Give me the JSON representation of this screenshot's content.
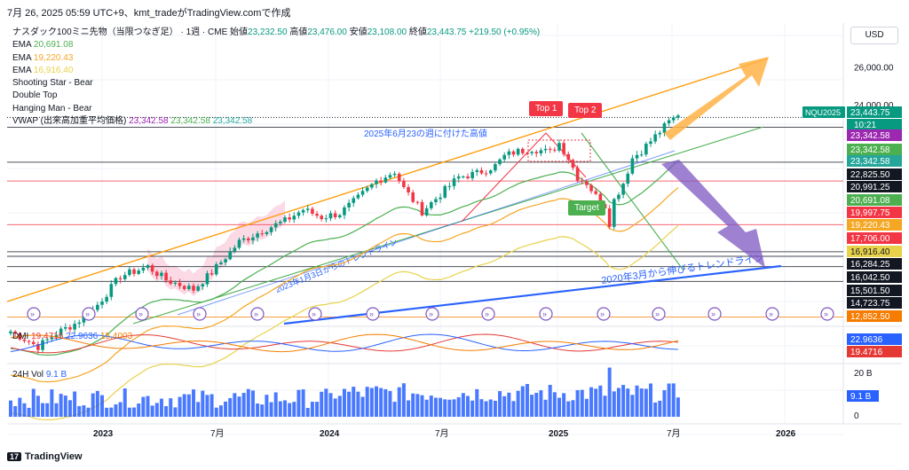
{
  "header": {
    "text": "7月 26, 2025 05:59 UTC+9、kmt_tradeがTradingView.comで作成"
  },
  "legend": {
    "symbol_line": "ナスダック100ミニ先物（当限つなぎ足） · 1週 · CME",
    "ohlc": [
      {
        "label": "始値",
        "value": "23,232.50"
      },
      {
        "label": "高値",
        "value": "23,476.00"
      },
      {
        "label": "安値",
        "value": "23,108.00"
      },
      {
        "label": "終値",
        "value": "23,443.75"
      }
    ],
    "change": "+219.50 (+0.95%)",
    "indicators": [
      {
        "name": "EMA",
        "value": "20,691.08",
        "color": "#4caf50"
      },
      {
        "name": "EMA",
        "value": "19,220.43",
        "color": "#f5a623"
      },
      {
        "name": "EMA",
        "value": "16,916.40",
        "color": "#e8d24a"
      },
      {
        "name": "Shooting Star - Bear",
        "value": "",
        "color": "#131722"
      },
      {
        "name": "Double Top",
        "value": "",
        "color": "#131722"
      },
      {
        "name": "Hanging Man - Bear",
        "value": "",
        "color": "#131722"
      }
    ],
    "vwap": {
      "name": "VWAP (出来高加重平均価格)",
      "values": [
        "23,342.58",
        "23,342.58",
        "23,342.58"
      ],
      "colors": [
        "#9c27b0",
        "#4caf50",
        "#26a69a"
      ]
    }
  },
  "currency_button": "USD",
  "symbol_tag": "NQU2025",
  "countdown": "10:21",
  "annotations": {
    "top1": "Top 1",
    "top2": "Top 2",
    "target": "Target",
    "high_note": "2025年6月23の週に付けた高値",
    "trend_2023": "2023年1月3日からのトレンドライン",
    "trend_2020": "2020年3月から伸びるトレンドライン"
  },
  "dmi": {
    "name": "DMI",
    "values": [
      "19.4716",
      "22.9636",
      "15.4003"
    ],
    "colors": [
      "#e53935",
      "#2962ff",
      "#f57c00"
    ]
  },
  "volume": {
    "name": "24H Vol",
    "value": "9.1 B",
    "axis_top": "20 B",
    "axis_bottom": "0",
    "tag": "9.1 B"
  },
  "right_axis": {
    "ticks": [
      "26,000.00",
      "24,000.00"
    ],
    "tags": [
      {
        "text": "23,443.75",
        "color": "#089981"
      },
      {
        "text": "23,342.58",
        "color": "#9c27b0"
      },
      {
        "text": "23,342.58",
        "color": "#4caf50"
      },
      {
        "text": "23,342.58",
        "color": "#26a69a"
      },
      {
        "text": "22,825.50",
        "color": "#131722"
      },
      {
        "text": "20,991.25",
        "color": "#131722"
      },
      {
        "text": "20,691.08",
        "color": "#4caf50"
      },
      {
        "text": "19,997.75",
        "color": "#f23645"
      },
      {
        "text": "19,220.43",
        "color": "#f5a623"
      },
      {
        "text": "17,706.00",
        "color": "#f23645"
      },
      {
        "text": "16,916.40",
        "color": "#e8d24a"
      },
      {
        "text": "16,284.25",
        "color": "#131722"
      },
      {
        "text": "16,042.50",
        "color": "#131722"
      },
      {
        "text": "15,501.50",
        "color": "#131722"
      },
      {
        "text": "14,723.75",
        "color": "#131722"
      },
      {
        "text": "12,852.50",
        "color": "#f57c00"
      }
    ],
    "dmi_tags": [
      {
        "text": "22.9636",
        "color": "#2962ff"
      },
      {
        "text": "19.4716",
        "color": "#e53935"
      }
    ]
  },
  "time_axis": [
    "2023",
    "7月",
    "2024",
    "7月",
    "2025",
    "7月",
    "2026"
  ],
  "brand": "TradingView",
  "chart_data": {
    "type": "candlestick",
    "timeframe": "1週",
    "x_labels": [
      "2023",
      "7月",
      "2024",
      "7月",
      "2025",
      "7月",
      "2026"
    ],
    "keyframes": [
      [
        0,
        12100
      ],
      [
        6,
        11300
      ],
      [
        10,
        12000
      ],
      [
        14,
        12500
      ],
      [
        18,
        13200
      ],
      [
        24,
        15000
      ],
      [
        30,
        15500
      ],
      [
        34,
        14800
      ],
      [
        40,
        14300
      ],
      [
        44,
        15200
      ],
      [
        50,
        16800
      ],
      [
        56,
        17500
      ],
      [
        60,
        17900
      ],
      [
        64,
        18500
      ],
      [
        68,
        18100
      ],
      [
        72,
        18300
      ],
      [
        76,
        19100
      ],
      [
        80,
        20000
      ],
      [
        84,
        20500
      ],
      [
        86,
        19600
      ],
      [
        90,
        18400
      ],
      [
        94,
        19300
      ],
      [
        98,
        20200
      ],
      [
        102,
        20400
      ],
      [
        106,
        20800
      ],
      [
        108,
        21300
      ],
      [
        110,
        21500
      ],
      [
        114,
        21700
      ],
      [
        118,
        21500
      ],
      [
        120,
        22000
      ],
      [
        122,
        21200
      ],
      [
        124,
        20200
      ],
      [
        126,
        19900
      ],
      [
        128,
        19200
      ],
      [
        130,
        18700
      ],
      [
        131,
        17800
      ],
      [
        132,
        19000
      ],
      [
        134,
        19900
      ],
      [
        136,
        21200
      ],
      [
        138,
        21600
      ],
      [
        140,
        22100
      ],
      [
        142,
        22600
      ],
      [
        144,
        23100
      ],
      [
        146,
        23443.75
      ]
    ],
    "last": {
      "open": 23232.5,
      "high": 23476.0,
      "low": 23108.0,
      "close": 23443.75
    },
    "ema": [
      {
        "value": 20691.08,
        "color": "#4caf50"
      },
      {
        "value": 19220.43,
        "color": "#f5a623"
      },
      {
        "value": 16916.4,
        "color": "#e8d24a"
      }
    ],
    "horizontal_levels": [
      22825.5,
      20991.25,
      19997.75,
      17706.0,
      16284.25,
      16042.5,
      15501.5,
      14723.75,
      12852.5
    ],
    "dmi": {
      "plus_di": 22.9636,
      "minus_di": 19.4716,
      "adx": 15.4003
    },
    "volume_last": "9.1 B"
  }
}
